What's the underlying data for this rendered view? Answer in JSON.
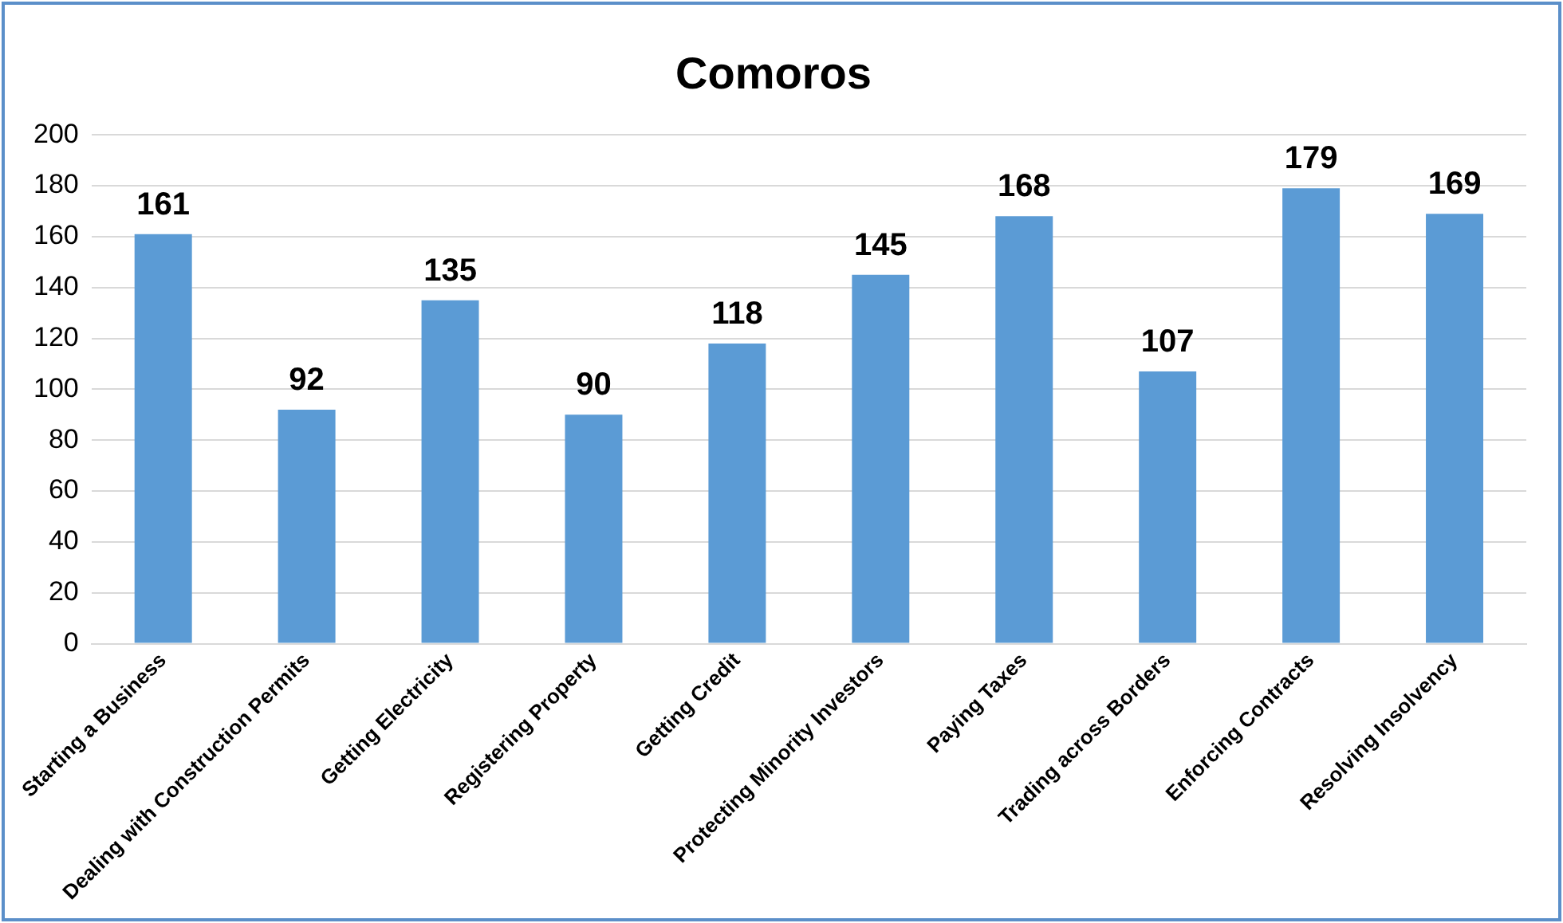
{
  "chart_data": {
    "type": "bar",
    "title": "Comoros",
    "categories": [
      "Starting a Business",
      "Dealing with Construction Permits",
      "Getting Electricity",
      "Registering Property",
      "Getting Credit",
      "Protecting Minority Investors",
      "Paying Taxes",
      "Trading across Borders",
      "Enforcing Contracts",
      "Resolving Insolvency"
    ],
    "values": [
      161,
      92,
      135,
      90,
      118,
      145,
      168,
      107,
      179,
      169
    ],
    "color": "#5b9bd5",
    "ylim": [
      0,
      200
    ],
    "yticks": [
      0,
      20,
      40,
      60,
      80,
      100,
      120,
      140,
      160,
      180,
      200
    ],
    "grid": "y",
    "data_labels": true
  }
}
